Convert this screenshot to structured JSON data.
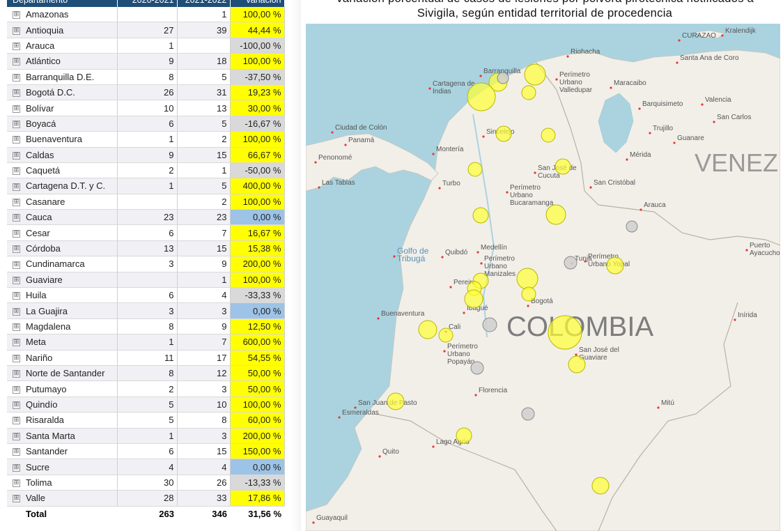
{
  "table": {
    "headers": [
      "Departamento",
      "2020-2021",
      "2021-2022",
      "Variación"
    ],
    "expand_glyph": "⊞",
    "colors": {
      "yellow": "#ffff00",
      "gray": "#d9d9d9",
      "blue": "#9dc3e6",
      "header": "#1f4e79"
    },
    "rows": [
      {
        "name": "Amazonas",
        "a": "",
        "b": "1",
        "v": "100,00 %",
        "c": "yellow"
      },
      {
        "name": "Antioquia",
        "a": "27",
        "b": "39",
        "v": "44,44 %",
        "c": "yellow"
      },
      {
        "name": "Arauca",
        "a": "1",
        "b": "",
        "v": "-100,00 %",
        "c": "gray"
      },
      {
        "name": "Atlántico",
        "a": "9",
        "b": "18",
        "v": "100,00 %",
        "c": "yellow"
      },
      {
        "name": "Barranquilla D.E.",
        "a": "8",
        "b": "5",
        "v": "-37,50 %",
        "c": "gray"
      },
      {
        "name": "Bogotá D.C.",
        "a": "26",
        "b": "31",
        "v": "19,23 %",
        "c": "yellow"
      },
      {
        "name": "Bolívar",
        "a": "10",
        "b": "13",
        "v": "30,00 %",
        "c": "yellow"
      },
      {
        "name": "Boyacá",
        "a": "6",
        "b": "5",
        "v": "-16,67 %",
        "c": "gray"
      },
      {
        "name": "Buenaventura",
        "a": "1",
        "b": "2",
        "v": "100,00 %",
        "c": "yellow"
      },
      {
        "name": "Caldas",
        "a": "9",
        "b": "15",
        "v": "66,67 %",
        "c": "yellow"
      },
      {
        "name": "Caquetá",
        "a": "2",
        "b": "1",
        "v": "-50,00 %",
        "c": "gray"
      },
      {
        "name": "Cartagena D.T. y C.",
        "a": "1",
        "b": "5",
        "v": "400,00 %",
        "c": "yellow"
      },
      {
        "name": "Casanare",
        "a": "",
        "b": "2",
        "v": "100,00 %",
        "c": "yellow"
      },
      {
        "name": "Cauca",
        "a": "23",
        "b": "23",
        "v": "0,00 %",
        "c": "blue"
      },
      {
        "name": "Cesar",
        "a": "6",
        "b": "7",
        "v": "16,67 %",
        "c": "yellow"
      },
      {
        "name": "Córdoba",
        "a": "13",
        "b": "15",
        "v": "15,38 %",
        "c": "yellow"
      },
      {
        "name": "Cundinamarca",
        "a": "3",
        "b": "9",
        "v": "200,00 %",
        "c": "yellow"
      },
      {
        "name": "Guaviare",
        "a": "",
        "b": "1",
        "v": "100,00 %",
        "c": "yellow"
      },
      {
        "name": "Huila",
        "a": "6",
        "b": "4",
        "v": "-33,33 %",
        "c": "gray"
      },
      {
        "name": "La Guajira",
        "a": "3",
        "b": "3",
        "v": "0,00 %",
        "c": "blue"
      },
      {
        "name": "Magdalena",
        "a": "8",
        "b": "9",
        "v": "12,50 %",
        "c": "yellow"
      },
      {
        "name": "Meta",
        "a": "1",
        "b": "7",
        "v": "600,00 %",
        "c": "yellow"
      },
      {
        "name": "Nariño",
        "a": "11",
        "b": "17",
        "v": "54,55 %",
        "c": "yellow"
      },
      {
        "name": "Norte de Santander",
        "a": "8",
        "b": "12",
        "v": "50,00 %",
        "c": "yellow"
      },
      {
        "name": "Putumayo",
        "a": "2",
        "b": "3",
        "v": "50,00 %",
        "c": "yellow"
      },
      {
        "name": "Quindío",
        "a": "5",
        "b": "10",
        "v": "100,00 %",
        "c": "yellow"
      },
      {
        "name": "Risaralda",
        "a": "5",
        "b": "8",
        "v": "60,00 %",
        "c": "yellow"
      },
      {
        "name": "Santa Marta",
        "a": "1",
        "b": "3",
        "v": "200,00 %",
        "c": "yellow"
      },
      {
        "name": "Santander",
        "a": "6",
        "b": "15",
        "v": "150,00 %",
        "c": "yellow"
      },
      {
        "name": "Sucre",
        "a": "4",
        "b": "4",
        "v": "0,00 %",
        "c": "blue"
      },
      {
        "name": "Tolima",
        "a": "30",
        "b": "26",
        "v": "-13,33 %",
        "c": "gray"
      },
      {
        "name": "Valle",
        "a": "28",
        "b": "33",
        "v": "17,86 %",
        "c": "yellow"
      }
    ],
    "total": {
      "label": "Total",
      "a": "263",
      "b": "346",
      "v": "31,56 %"
    }
  },
  "map": {
    "title_line1": "Variación porcentual de casos de lesiones por pólvora pirotécnica notificados a",
    "title_line2": "Sivigila, según entidad territorial de procedencia",
    "country_label": "COLOMBIA",
    "neighbor_label": "VENEZ",
    "colors": {
      "sea": "#aad3df",
      "land": "#f2efe9",
      "bubble_yellow": "#ffff33",
      "bubble_gray": "#cfcfcf",
      "city_dot": "#e53935"
    },
    "places": [
      "Kralendijk",
      "CURAZAO",
      "Riohacha",
      "Santa Ana de Coro",
      "Barranquilla",
      "Perímetro Urbano Valledupar",
      "Maracaibo",
      "Cartagena de Indias",
      "Barquisimeto",
      "Valencia",
      "San Carlos",
      "Ciudad de Colón",
      "Panamá",
      "Trujillo",
      "Guanare",
      "Sincelejo",
      "Penonomé",
      "Montería",
      "Mérida",
      "Las Tablas",
      "San José de Cucuta",
      "San Cristóbal",
      "Turbo",
      "Perímetro Urbano Bucaramanga",
      "Arauca",
      "Golfo de Tribugá",
      "Quibdó",
      "Medellín",
      "Perímetro Urbano Manizales",
      "Tunja",
      "Perímetro Urbano Yopal",
      "Puerto Ayacucho",
      "Pereira",
      "Bogotá",
      "Ibagué",
      "Buenaventura",
      "Cali",
      "Inírida",
      "Perímetro Urbano Popayán",
      "San José del Guaviare",
      "Florencia",
      "San Juan de Pasto",
      "Esmeraldas",
      "Mitú",
      "Lago Agrio",
      "Quito",
      "Guayaquil"
    ]
  }
}
